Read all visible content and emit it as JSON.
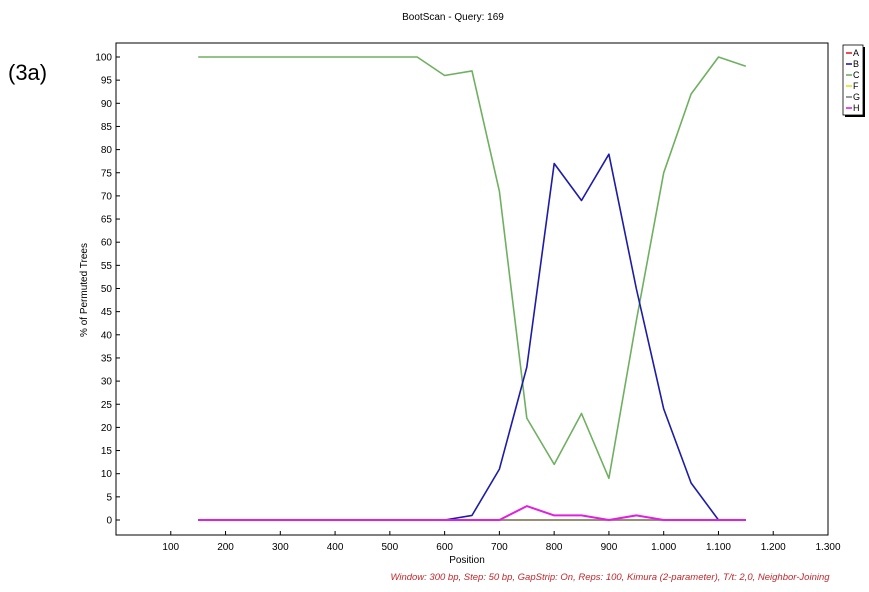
{
  "panel_label": "(3a)",
  "chart_data": {
    "type": "line",
    "title": "BootScan - Query: 169",
    "xlabel": "Position",
    "ylabel": "% of Permuted Trees",
    "footer": "Window: 300 bp, Step: 50 bp, GapStrip: On, Reps: 100, Kimura (2-parameter), T/t: 2,0, Neighbor-Joining",
    "xlim": [
      0,
      1300
    ],
    "ylim": [
      0,
      100
    ],
    "x_ticks": [
      100,
      200,
      300,
      400,
      500,
      600,
      700,
      800,
      900,
      1000,
      1100,
      1200,
      1300
    ],
    "x_tick_labels": [
      "100",
      "200",
      "300",
      "400",
      "500",
      "600",
      "700",
      "800",
      "900",
      "1.000",
      "1.100",
      "1.200",
      "1.300"
    ],
    "y_ticks": [
      0,
      5,
      10,
      15,
      20,
      25,
      30,
      35,
      40,
      45,
      50,
      55,
      60,
      65,
      70,
      75,
      80,
      85,
      90,
      95,
      100
    ],
    "y_tick_labels": [
      "0",
      "5",
      "10",
      "15",
      "20",
      "25",
      "30",
      "35",
      "40",
      "45",
      "50",
      "55",
      "60",
      "65",
      "70",
      "75",
      "80",
      "85",
      "90",
      "95",
      "100"
    ],
    "grid": false,
    "legend_position": "top-right",
    "x": [
      150,
      200,
      250,
      300,
      350,
      400,
      450,
      500,
      550,
      600,
      650,
      700,
      750,
      800,
      850,
      900,
      950,
      1000,
      1050,
      1100,
      1150
    ],
    "series": [
      {
        "name": "A",
        "color": "#e8202a",
        "values": [
          0,
          0,
          0,
          0,
          0,
          0,
          0,
          0,
          0,
          0,
          0,
          0,
          0,
          0,
          0,
          0,
          0,
          0,
          0,
          0,
          0
        ]
      },
      {
        "name": "B",
        "color": "#1c1ca8",
        "values": [
          0,
          0,
          0,
          0,
          0,
          0,
          0,
          0,
          0,
          0,
          1,
          11,
          33,
          77,
          69,
          79,
          50,
          24,
          8,
          0,
          0
        ]
      },
      {
        "name": "C",
        "color": "#6fb060",
        "values": [
          100,
          100,
          100,
          100,
          100,
          100,
          100,
          100,
          100,
          96,
          97,
          71,
          22,
          12,
          23,
          9,
          43,
          75,
          92,
          100,
          98
        ]
      },
      {
        "name": "F",
        "color": "#e8e020",
        "values": [
          0,
          0,
          0,
          0,
          0,
          0,
          0,
          0,
          0,
          0,
          0,
          0,
          0,
          0,
          0,
          0,
          0,
          0,
          0,
          0,
          0
        ]
      },
      {
        "name": "G",
        "color": "#808080",
        "values": [
          0,
          0,
          0,
          0,
          0,
          0,
          0,
          0,
          0,
          0,
          0,
          0,
          0,
          0,
          0,
          0,
          0,
          0,
          0,
          0,
          0
        ]
      },
      {
        "name": "H",
        "color": "#e020e0",
        "values": [
          0,
          0,
          0,
          0,
          0,
          0,
          0,
          0,
          0,
          0,
          0,
          0,
          3,
          1,
          1,
          0,
          1,
          0,
          0,
          0,
          0
        ]
      }
    ]
  }
}
